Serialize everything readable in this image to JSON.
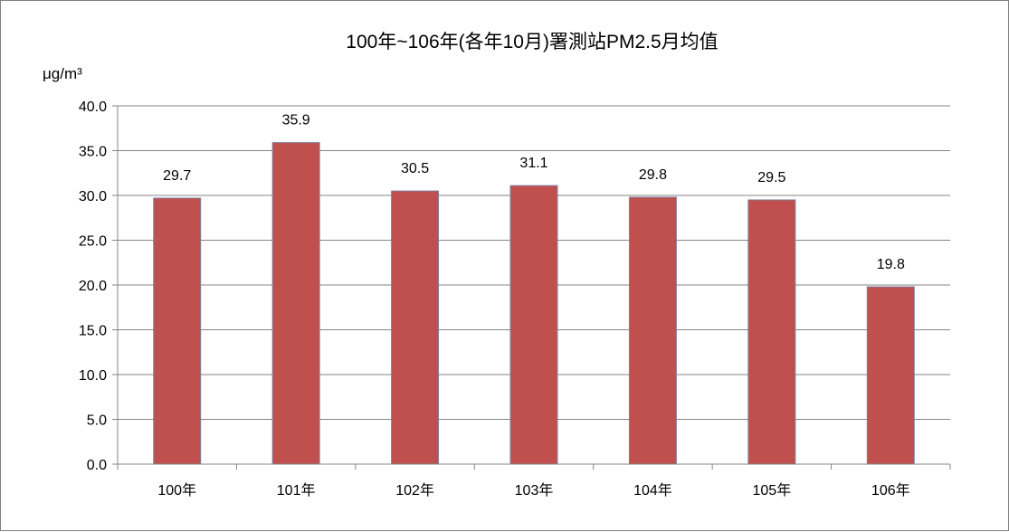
{
  "chart_data": {
    "type": "bar",
    "title": "100年~106年(各年10月)署測站PM2.5月均值",
    "xlabel": "",
    "ylabel": "μg/m³",
    "categories": [
      "100年",
      "101年",
      "102年",
      "103年",
      "104年",
      "105年",
      "106年"
    ],
    "values": [
      29.7,
      35.9,
      30.5,
      31.1,
      29.8,
      29.5,
      19.8
    ],
    "data_labels": [
      "29.7",
      "35.9",
      "30.5",
      "31.1",
      "29.8",
      "29.5",
      "19.8"
    ],
    "ylim": [
      0,
      40
    ],
    "yticks": [
      "0.0",
      "5.0",
      "10.0",
      "15.0",
      "20.0",
      "25.0",
      "30.0",
      "35.0",
      "40.0"
    ],
    "grid": true,
    "legend": "none",
    "colors": {
      "bar": "#C0504D",
      "bar_border": "#7F7FA0",
      "grid": "#868686"
    }
  }
}
